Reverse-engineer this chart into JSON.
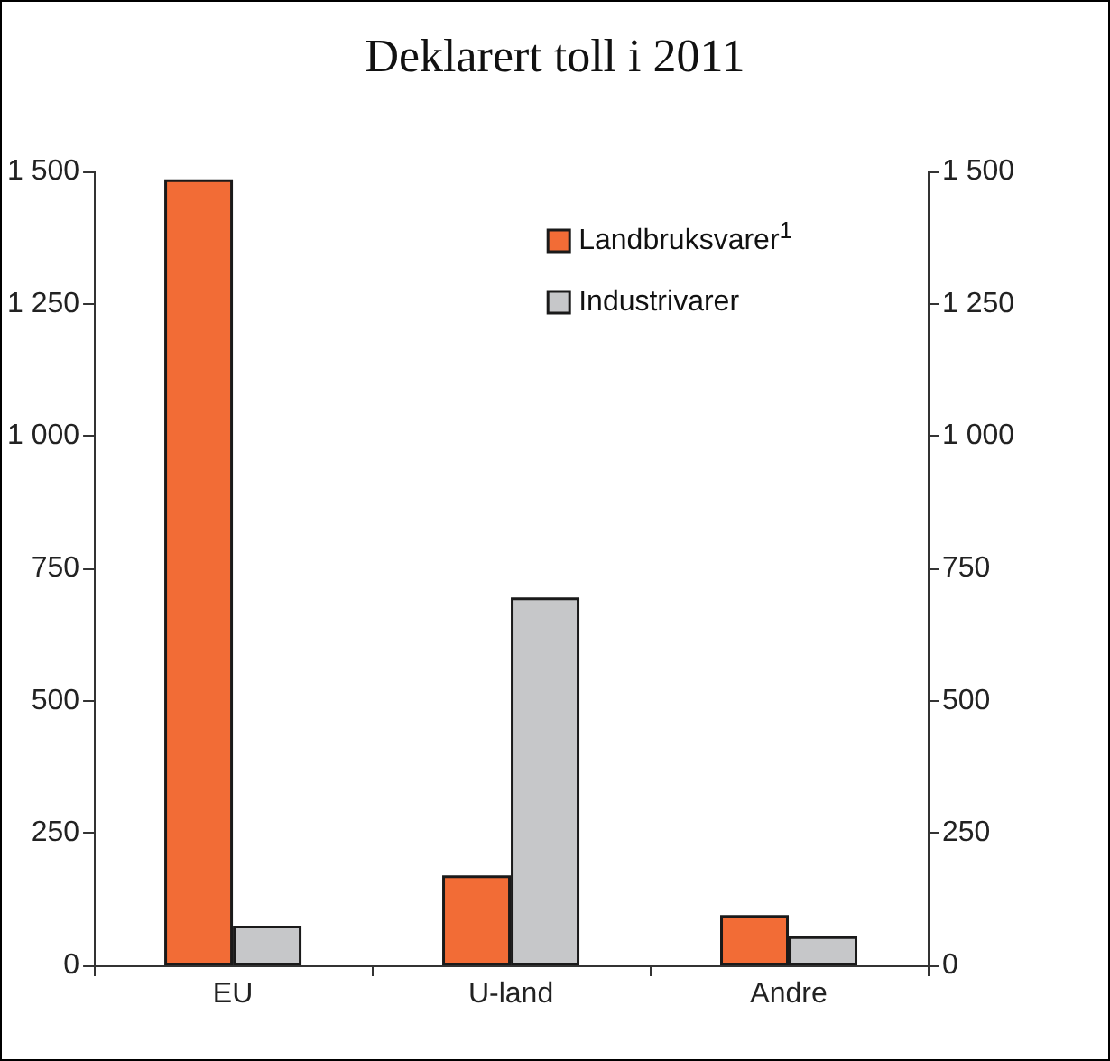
{
  "chart_data": {
    "type": "bar",
    "title": "Deklarert toll i 2011",
    "categories": [
      "EU",
      "U-land",
      "Andre"
    ],
    "series": [
      {
        "name": "Landbruksvarer$^{1}$",
        "color": "#f26c36",
        "values": [
          1485,
          170,
          95
        ]
      },
      {
        "name": "Industrivarer",
        "color": "#c6c7c9",
        "values": [
          75,
          695,
          55
        ]
      }
    ],
    "ylim": [
      0,
      1500
    ],
    "yticks": [
      0,
      250,
      500,
      750,
      {
        "value": 1000,
        "label": "1 000"
      },
      {
        "value": 1250,
        "label": "1 250"
      },
      {
        "value": 1500,
        "label": "1 500"
      }
    ],
    "y2lim": [
      0,
      1500
    ],
    "y2ticks": [
      0,
      250,
      500,
      750,
      {
        "value": 1000,
        "label": "1 000"
      },
      {
        "value": 1250,
        "label": "1 250"
      },
      {
        "value": 1500,
        "label": "1 500"
      }
    ],
    "grid": false,
    "legend": "top right"
  }
}
